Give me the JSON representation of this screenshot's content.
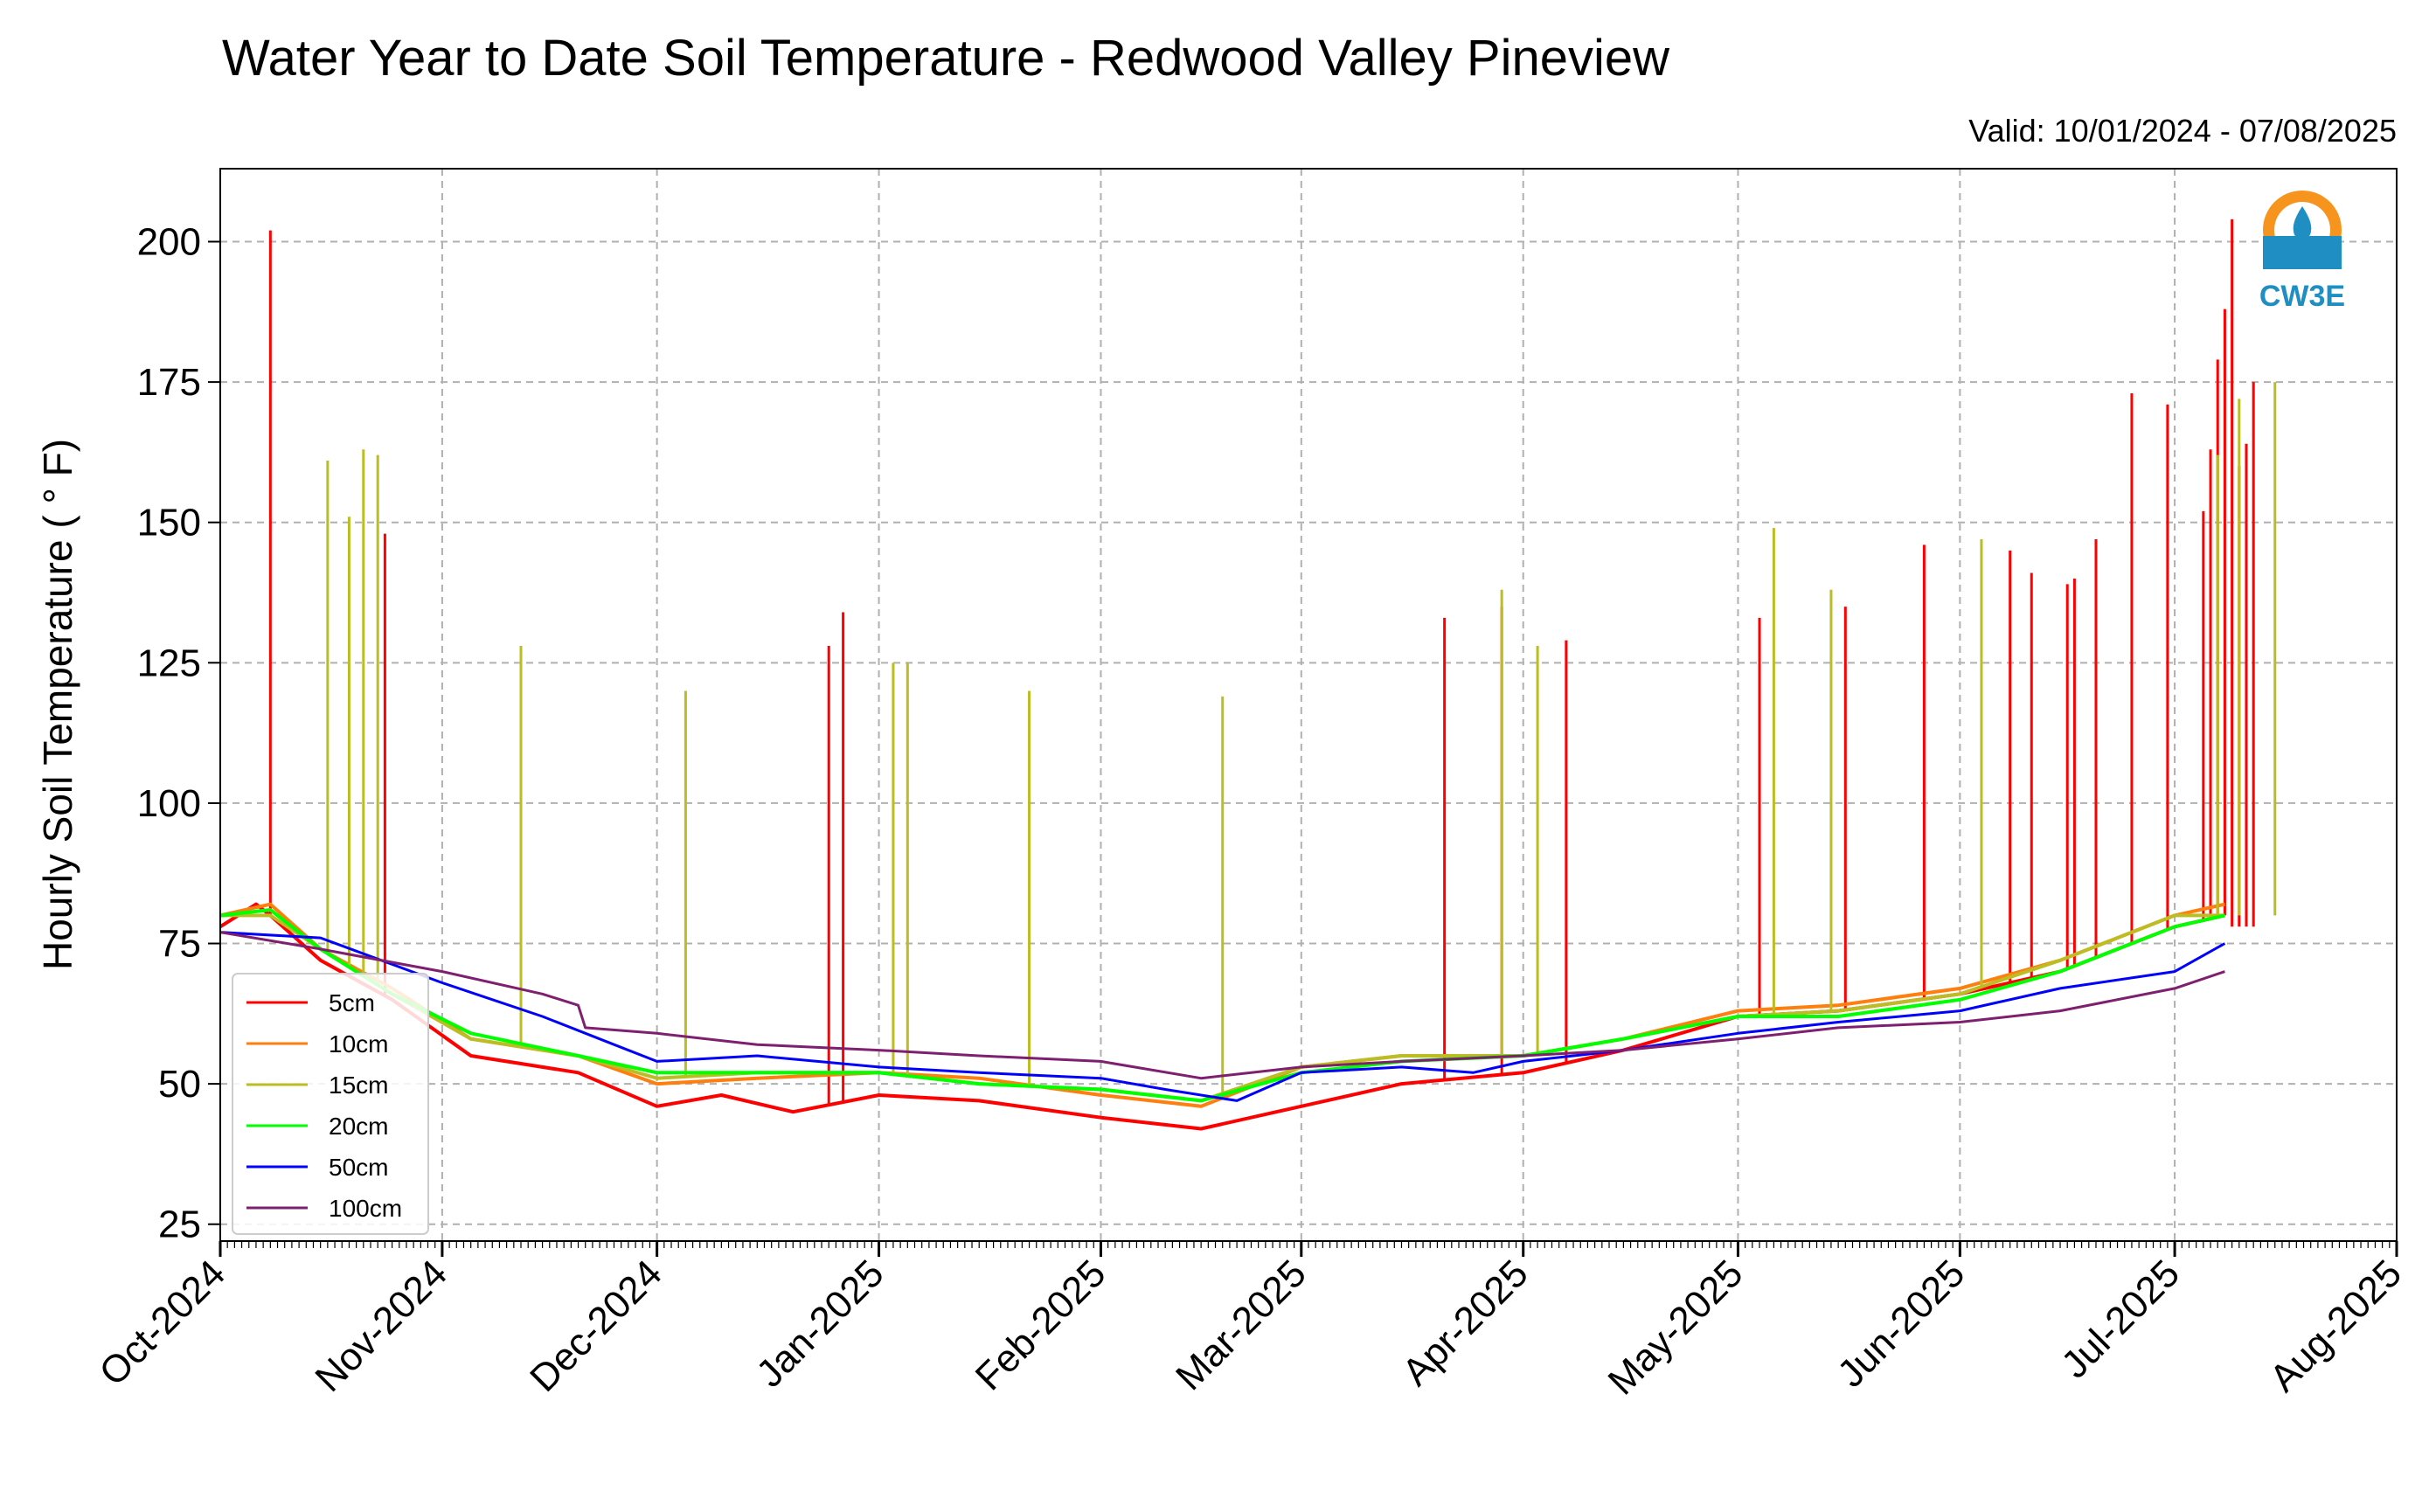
{
  "chart_data": {
    "type": "line",
    "title": "Water Year to Date Soil Temperature - Redwood Valley Pineview",
    "subtitle": "Valid: 10/01/2024 - 07/08/2025",
    "xlabel": "",
    "ylabel": "Hourly Soil Temperature ( ° F)",
    "x_ticks": [
      "Oct-2024",
      "Nov-2024",
      "Dec-2024",
      "Jan-2025",
      "Feb-2025",
      "Mar-2025",
      "Apr-2025",
      "May-2025",
      "Jun-2025",
      "Jul-2025",
      "Aug-2025"
    ],
    "xlim": [
      "2024-10-01",
      "2025-08-01"
    ],
    "y_ticks": [
      25,
      50,
      75,
      100,
      125,
      150,
      175,
      200
    ],
    "ylim": [
      22,
      213
    ],
    "grid": true,
    "legend_position": "lower-left",
    "logo_text": "CW3E",
    "series": [
      {
        "name": "5cm",
        "color": "#ff0000",
        "x": [
          "2024-10-01",
          "2024-10-06",
          "2024-10-08",
          "2024-10-15",
          "2024-10-25",
          "2024-11-05",
          "2024-11-20",
          "2024-12-01",
          "2024-12-10",
          "2024-12-20",
          "2025-01-01",
          "2025-01-15",
          "2025-02-01",
          "2025-02-15",
          "2025-03-01",
          "2025-03-15",
          "2025-04-01",
          "2025-04-15",
          "2025-05-01",
          "2025-05-15",
          "2025-06-01",
          "2025-06-15",
          "2025-07-01",
          "2025-07-08"
        ],
        "values": [
          78,
          82,
          80,
          72,
          65,
          55,
          52,
          46,
          48,
          45,
          48,
          47,
          44,
          42,
          46,
          50,
          52,
          56,
          62,
          63,
          66,
          70,
          78,
          80
        ],
        "spikes": [
          [
            "2024-10-08",
            202
          ],
          [
            "2024-10-24",
            148
          ],
          [
            "2024-12-25",
            128
          ],
          [
            "2024-12-27",
            134
          ],
          [
            "2025-03-21",
            133
          ],
          [
            "2025-03-29",
            135
          ],
          [
            "2025-04-07",
            129
          ],
          [
            "2025-05-04",
            133
          ],
          [
            "2025-05-16",
            135
          ],
          [
            "2025-05-27",
            146
          ],
          [
            "2025-06-08",
            145
          ],
          [
            "2025-06-11",
            141
          ],
          [
            "2025-06-16",
            139
          ],
          [
            "2025-06-20",
            147
          ],
          [
            "2025-06-17",
            140
          ],
          [
            "2025-06-25",
            173
          ],
          [
            "2025-06-30",
            171
          ],
          [
            "2025-07-05",
            152
          ],
          [
            "2025-07-06",
            163
          ],
          [
            "2025-07-07",
            179
          ],
          [
            "2025-07-08",
            188
          ],
          [
            "2025-07-09",
            204
          ],
          [
            "2025-07-10",
            160
          ],
          [
            "2025-07-11",
            164
          ],
          [
            "2025-07-12",
            175
          ]
        ]
      },
      {
        "name": "10cm",
        "color": "#ff7f0e",
        "x": [
          "2024-10-01",
          "2024-10-08",
          "2024-10-15",
          "2024-10-25",
          "2024-11-05",
          "2024-11-20",
          "2024-12-01",
          "2024-12-15",
          "2025-01-01",
          "2025-01-15",
          "2025-02-01",
          "2025-02-15",
          "2025-03-01",
          "2025-03-15",
          "2025-04-01",
          "2025-04-15",
          "2025-05-01",
          "2025-05-15",
          "2025-06-01",
          "2025-06-15",
          "2025-07-01",
          "2025-07-08"
        ],
        "values": [
          80,
          82,
          74,
          67,
          58,
          55,
          50,
          51,
          52,
          51,
          48,
          46,
          53,
          55,
          55,
          58,
          63,
          64,
          67,
          72,
          80,
          82
        ]
      },
      {
        "name": "15cm",
        "color": "#bcbd22",
        "x": [
          "2024-10-01",
          "2024-10-08",
          "2024-10-15",
          "2024-10-25",
          "2024-11-05",
          "2024-11-20",
          "2024-12-01",
          "2024-12-15",
          "2025-01-01",
          "2025-01-15",
          "2025-02-01",
          "2025-02-15",
          "2025-03-01",
          "2025-03-15",
          "2025-04-01",
          "2025-04-15",
          "2025-05-01",
          "2025-05-15",
          "2025-06-01",
          "2025-06-15",
          "2025-07-01",
          "2025-07-08"
        ],
        "values": [
          80,
          80,
          74,
          66,
          58,
          55,
          51,
          52,
          52,
          50,
          49,
          47,
          53,
          55,
          55,
          58,
          62,
          63,
          66,
          72,
          80,
          80
        ],
        "spikes": [
          [
            "2024-10-16",
            161
          ],
          [
            "2024-10-19",
            151
          ],
          [
            "2024-10-21",
            163
          ],
          [
            "2024-10-23",
            162
          ],
          [
            "2024-11-12",
            128
          ],
          [
            "2024-12-05",
            120
          ],
          [
            "2025-01-03",
            125
          ],
          [
            "2025-01-05",
            125
          ],
          [
            "2025-01-22",
            120
          ],
          [
            "2025-02-18",
            119
          ],
          [
            "2025-03-29",
            138
          ],
          [
            "2025-04-03",
            128
          ],
          [
            "2025-05-06",
            149
          ],
          [
            "2025-05-14",
            138
          ],
          [
            "2025-06-04",
            147
          ],
          [
            "2025-07-07",
            162
          ],
          [
            "2025-07-10",
            172
          ],
          [
            "2025-07-15",
            175
          ]
        ]
      },
      {
        "name": "20cm",
        "color": "#00ff00",
        "x": [
          "2024-10-01",
          "2024-10-08",
          "2024-10-15",
          "2024-10-25",
          "2024-11-05",
          "2024-11-20",
          "2024-12-01",
          "2024-12-15",
          "2025-01-01",
          "2025-01-15",
          "2025-02-01",
          "2025-02-15",
          "2025-03-01",
          "2025-03-15",
          "2025-04-01",
          "2025-04-15",
          "2025-05-01",
          "2025-05-15",
          "2025-06-01",
          "2025-06-15",
          "2025-07-01",
          "2025-07-08"
        ],
        "values": [
          80,
          81,
          74,
          66,
          59,
          55,
          52,
          52,
          52,
          50,
          49,
          47,
          52,
          54,
          55,
          58,
          62,
          62,
          65,
          70,
          78,
          80
        ]
      },
      {
        "name": "50cm",
        "color": "#0000ff",
        "x": [
          "2024-10-01",
          "2024-10-15",
          "2024-11-01",
          "2024-11-15",
          "2024-11-25",
          "2024-12-01",
          "2024-12-15",
          "2025-01-01",
          "2025-01-15",
          "2025-02-01",
          "2025-02-10",
          "2025-02-20",
          "2025-03-01",
          "2025-03-15",
          "2025-03-25",
          "2025-04-01",
          "2025-04-15",
          "2025-05-01",
          "2025-05-15",
          "2025-06-01",
          "2025-06-15",
          "2025-07-01",
          "2025-07-08"
        ],
        "values": [
          77,
          76,
          68,
          62,
          57,
          54,
          55,
          53,
          52,
          51,
          49,
          47,
          52,
          53,
          52,
          54,
          56,
          59,
          61,
          63,
          67,
          70,
          75
        ]
      },
      {
        "name": "100cm",
        "color": "#7f1f6f",
        "x": [
          "2024-10-01",
          "2024-10-15",
          "2024-11-01",
          "2024-11-15",
          "2024-11-20",
          "2024-11-21",
          "2024-12-01",
          "2024-12-15",
          "2025-01-01",
          "2025-01-15",
          "2025-02-01",
          "2025-02-15",
          "2025-03-01",
          "2025-03-15",
          "2025-04-01",
          "2025-04-15",
          "2025-05-01",
          "2025-05-15",
          "2025-06-01",
          "2025-06-15",
          "2025-07-01",
          "2025-07-08"
        ],
        "values": [
          77,
          74,
          70,
          66,
          64,
          60,
          59,
          57,
          56,
          55,
          54,
          51,
          53,
          54,
          55,
          56,
          58,
          60,
          61,
          63,
          67,
          70
        ]
      }
    ]
  }
}
